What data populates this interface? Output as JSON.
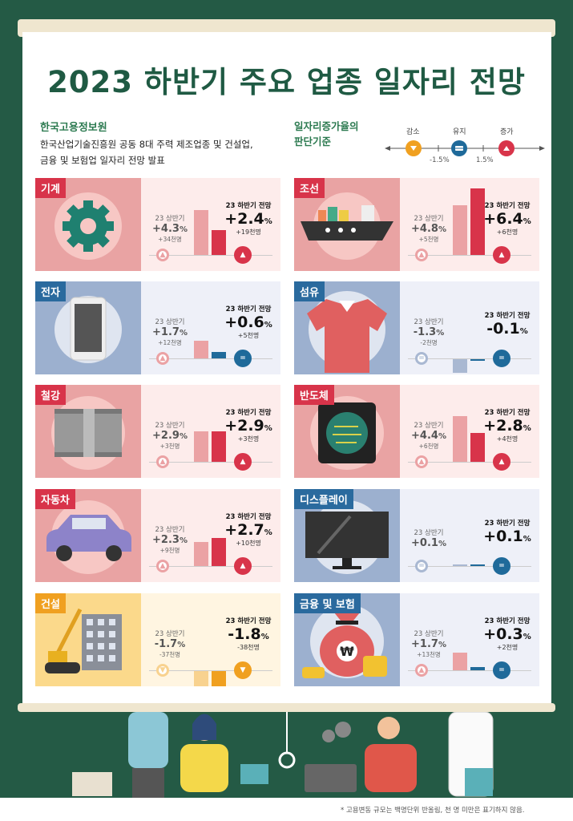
{
  "title": "2023 하반기 주요 업종 일자리 전망",
  "source": {
    "org": "한국고용정보원",
    "desc_line1": "한국산업기술진흥원 공동 8대 주력 제조업종 및 건설업,",
    "desc_line2": "금융 및 보험업 일자리 전망 발표"
  },
  "criteria": {
    "title_line1": "일자리증가율의",
    "title_line2": "판단기준",
    "decrease": "감소",
    "maintain": "유지",
    "increase": "증가",
    "low": "-1.5%",
    "high": "1.5%"
  },
  "labels": {
    "first_half": "23 상반기",
    "second_half": "23 하반기 전망"
  },
  "colors": {
    "up": "#d8344a",
    "up_light": "#eba2a4",
    "equal": "#1f6a9a",
    "equal_light": "#a9b8d2",
    "down": "#f0a020",
    "down_light": "#f8d28f",
    "green": "#245a45"
  },
  "sectors": [
    {
      "name": "기계",
      "theme": "red",
      "icon": "gear-icon",
      "h1": {
        "rate": 4.3,
        "text": "+4.3",
        "count": "+34천명",
        "status": "up"
      },
      "h2": {
        "rate": 2.4,
        "text": "+2.4",
        "count": "+19천명",
        "status": "up"
      }
    },
    {
      "name": "조선",
      "theme": "red",
      "icon": "ship-icon",
      "h1": {
        "rate": 4.8,
        "text": "+4.8",
        "count": "+5천명",
        "status": "up"
      },
      "h2": {
        "rate": 6.4,
        "text": "+6.4",
        "count": "+6천명",
        "status": "up"
      }
    },
    {
      "name": "전자",
      "theme": "blue",
      "icon": "smartphone-icon",
      "h1": {
        "rate": 1.7,
        "text": "+1.7",
        "count": "+12천명",
        "status": "up"
      },
      "h2": {
        "rate": 0.6,
        "text": "+0.6",
        "count": "+5천명",
        "status": "equal"
      }
    },
    {
      "name": "섬유",
      "theme": "blue",
      "icon": "shirt-icon",
      "h1": {
        "rate": -1.3,
        "text": "-1.3",
        "count": "-2천명",
        "status": "equal"
      },
      "h2": {
        "rate": -0.1,
        "text": "-0.1",
        "count": "",
        "status": "equal"
      }
    },
    {
      "name": "철강",
      "theme": "red",
      "icon": "steel-coil-icon",
      "h1": {
        "rate": 2.9,
        "text": "+2.9",
        "count": "+3천명",
        "status": "up"
      },
      "h2": {
        "rate": 2.9,
        "text": "+2.9",
        "count": "+3천명",
        "status": "up"
      }
    },
    {
      "name": "반도체",
      "theme": "red",
      "icon": "chip-icon",
      "h1": {
        "rate": 4.4,
        "text": "+4.4",
        "count": "+6천명",
        "status": "up"
      },
      "h2": {
        "rate": 2.8,
        "text": "+2.8",
        "count": "+4천명",
        "status": "up"
      }
    },
    {
      "name": "자동차",
      "theme": "red",
      "icon": "car-icon",
      "h1": {
        "rate": 2.3,
        "text": "+2.3",
        "count": "+9천명",
        "status": "up"
      },
      "h2": {
        "rate": 2.7,
        "text": "+2.7",
        "count": "+10천명",
        "status": "up"
      }
    },
    {
      "name": "디스플레이",
      "theme": "blue",
      "icon": "monitor-icon",
      "h1": {
        "rate": 0.1,
        "text": "+0.1",
        "count": "",
        "status": "equal"
      },
      "h2": {
        "rate": 0.1,
        "text": "+0.1",
        "count": "",
        "status": "equal"
      }
    },
    {
      "name": "건설",
      "theme": "yellow",
      "icon": "crane-icon",
      "h1": {
        "rate": -1.7,
        "text": "-1.7",
        "count": "-37천명",
        "status": "down"
      },
      "h2": {
        "rate": -1.8,
        "text": "-1.8",
        "count": "-38천명",
        "status": "down"
      }
    },
    {
      "name": "금융 및 보험",
      "theme": "blue",
      "icon": "money-bag-icon",
      "h1": {
        "rate": 1.7,
        "text": "+1.7",
        "count": "+13천명",
        "status": "up"
      },
      "h2": {
        "rate": 0.3,
        "text": "+0.3",
        "count": "+2천명",
        "status": "equal"
      }
    }
  ],
  "percent_sign": "%",
  "footnote": "* 고용변동 규모는 백명단위 반올림, 천 명 미만은 표기하지 않음."
}
